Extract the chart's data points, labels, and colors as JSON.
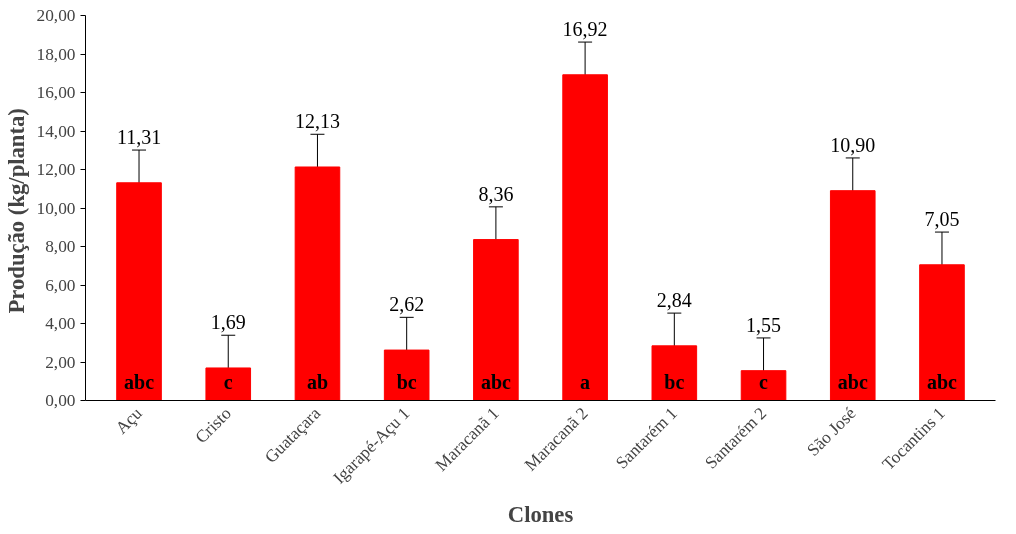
{
  "chart_data": {
    "type": "bar",
    "xlabel": "Clones",
    "ylabel": "Produção  (kg/planta)",
    "categories": [
      "Açu",
      "Cristo",
      "Guataçara",
      "Igarapé-Açu 1",
      "Maracanã 1",
      "Maracanã 2",
      "Santarém 1",
      "Santarém 2",
      "São José",
      "Tocantins 1"
    ],
    "values": [
      11.31,
      1.69,
      12.13,
      2.62,
      8.36,
      16.92,
      2.84,
      1.55,
      10.9,
      7.05
    ],
    "value_labels": [
      "11,31",
      "1,69",
      "12,13",
      "2,62",
      "8,36",
      "16,92",
      "2,84",
      "1,55",
      "10,90",
      "7,05"
    ],
    "errors": [
      1.7,
      1.7,
      1.7,
      1.7,
      1.7,
      1.7,
      1.7,
      1.7,
      1.7,
      1.7
    ],
    "color": "#ff0000",
    "ylim": [
      0,
      20
    ],
    "yticks": [
      {
        "value": 0,
        "label": "0,00"
      },
      {
        "value": 2,
        "label": "2,00"
      },
      {
        "value": 4,
        "label": "4,00"
      },
      {
        "value": 6,
        "label": "6,00"
      },
      {
        "value": 8,
        "label": "8,00"
      },
      {
        "value": 10,
        "label": "10,00"
      },
      {
        "value": 12,
        "label": "12,00"
      },
      {
        "value": 14,
        "label": "14,00"
      },
      {
        "value": 16,
        "label": "16,00"
      },
      {
        "value": 18,
        "label": "18,00"
      },
      {
        "value": 20,
        "label": "20,00"
      }
    ],
    "grid": false,
    "annotations": [
      "abc",
      "c",
      "ab",
      "bc",
      "abc",
      "a",
      "bc",
      "c",
      "abc",
      "abc"
    ]
  }
}
